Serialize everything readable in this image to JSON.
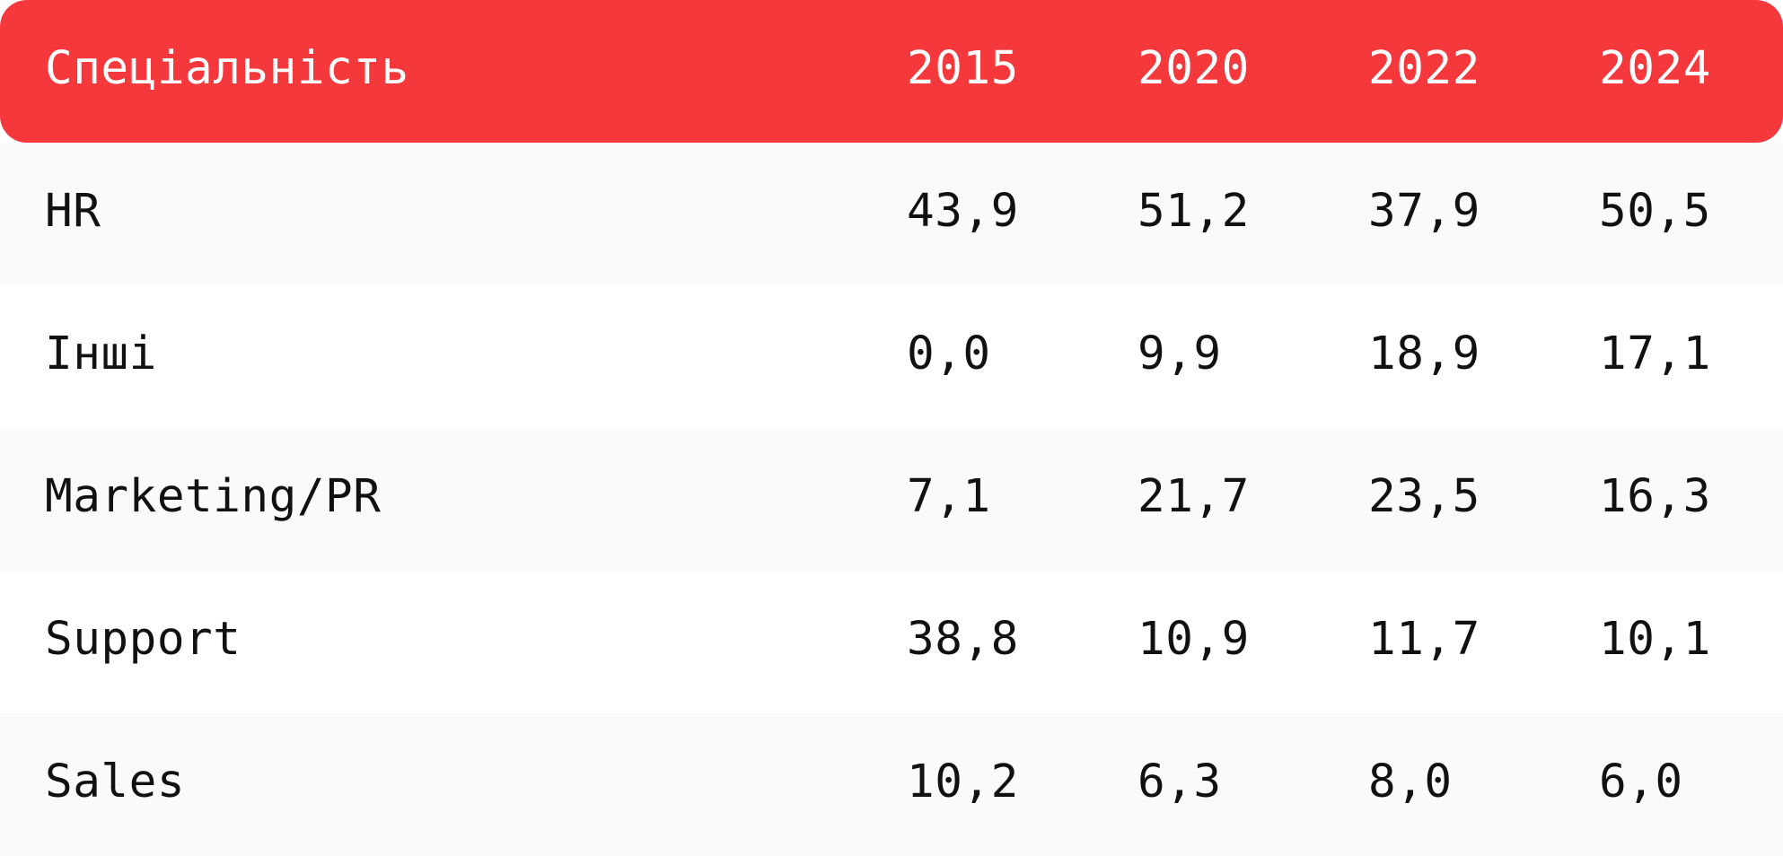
{
  "chart_data": {
    "type": "table",
    "columns": [
      "Спеціальність",
      "2015",
      "2020",
      "2022",
      "2024"
    ],
    "rows": [
      {
        "label": "HR",
        "values": [
          "43,9",
          "51,2",
          "37,9",
          "50,5"
        ]
      },
      {
        "label": "Інші",
        "values": [
          "0,0",
          "9,9",
          "18,9",
          "17,1"
        ]
      },
      {
        "label": "Marketing/PR",
        "values": [
          "7,1",
          "21,7",
          "23,5",
          "16,3"
        ]
      },
      {
        "label": "Support",
        "values": [
          "38,8",
          "10,9",
          "11,7",
          "10,1"
        ]
      },
      {
        "label": "Sales",
        "values": [
          "10,2",
          "6,3",
          "8,0",
          "6,0"
        ]
      }
    ]
  },
  "colors": {
    "header_background": "#F5383C",
    "header_text": "#FFFFFF",
    "row_stripe": "#FAFAFA",
    "row_plain": "#FFFFFF",
    "body_text": "#111111"
  }
}
